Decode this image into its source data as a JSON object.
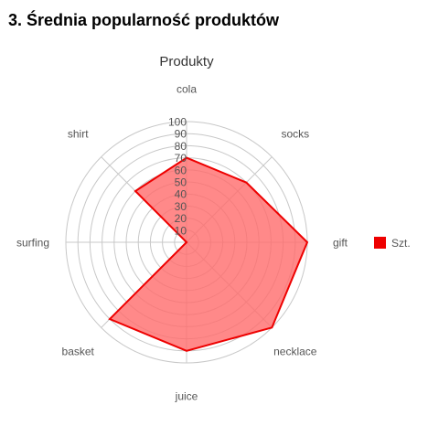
{
  "page": {
    "section_title": "3. Średnia popularność produktów"
  },
  "colors": {
    "series_fill": "#ff6b6b",
    "series_stroke": "#ee0000",
    "grid": "#c8c8c8",
    "label": "#555555",
    "title": "#333333"
  },
  "chart_data": {
    "type": "radar",
    "title": "Produkty",
    "categories": [
      "cola",
      "socks",
      "gift",
      "necklace",
      "juice",
      "basket",
      "surfing",
      "shirt"
    ],
    "series": [
      {
        "name": "Szt.",
        "values": [
          70,
          70,
          100,
          100,
          90,
          90,
          0,
          60
        ]
      }
    ],
    "rlim": [
      0,
      100
    ],
    "ticks": [
      10,
      20,
      30,
      40,
      50,
      60,
      70,
      80,
      90,
      100
    ],
    "grid": true,
    "legend": "right"
  }
}
